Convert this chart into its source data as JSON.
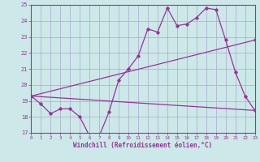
{
  "xlabel": "Windchill (Refroidissement éolien,°C)",
  "bg_color": "#cce8e8",
  "grid_color": "#aaaacc",
  "line_color": "#993399",
  "xmin": 0,
  "xmax": 23,
  "ymin": 17,
  "ymax": 25,
  "yticks": [
    17,
    18,
    19,
    20,
    21,
    22,
    23,
    24,
    25
  ],
  "xticks": [
    0,
    1,
    2,
    3,
    4,
    5,
    6,
    7,
    8,
    9,
    10,
    11,
    12,
    13,
    14,
    15,
    16,
    17,
    18,
    19,
    20,
    21,
    22,
    23
  ],
  "series1_x": [
    0,
    1,
    2,
    3,
    4,
    5,
    6,
    7,
    8,
    9,
    10,
    11,
    12,
    13,
    14,
    15,
    16,
    17,
    18,
    19,
    20,
    21,
    22,
    23
  ],
  "series1_y": [
    19.3,
    18.8,
    18.2,
    18.5,
    18.5,
    18.0,
    16.8,
    16.8,
    18.3,
    20.3,
    21.0,
    21.8,
    23.5,
    23.3,
    24.8,
    23.7,
    23.8,
    24.2,
    24.8,
    24.7,
    22.8,
    20.8,
    19.3,
    18.4
  ],
  "series2_x": [
    0,
    23
  ],
  "series2_y": [
    19.3,
    18.4
  ],
  "series3_x": [
    0,
    23
  ],
  "series3_y": [
    19.3,
    22.8
  ]
}
